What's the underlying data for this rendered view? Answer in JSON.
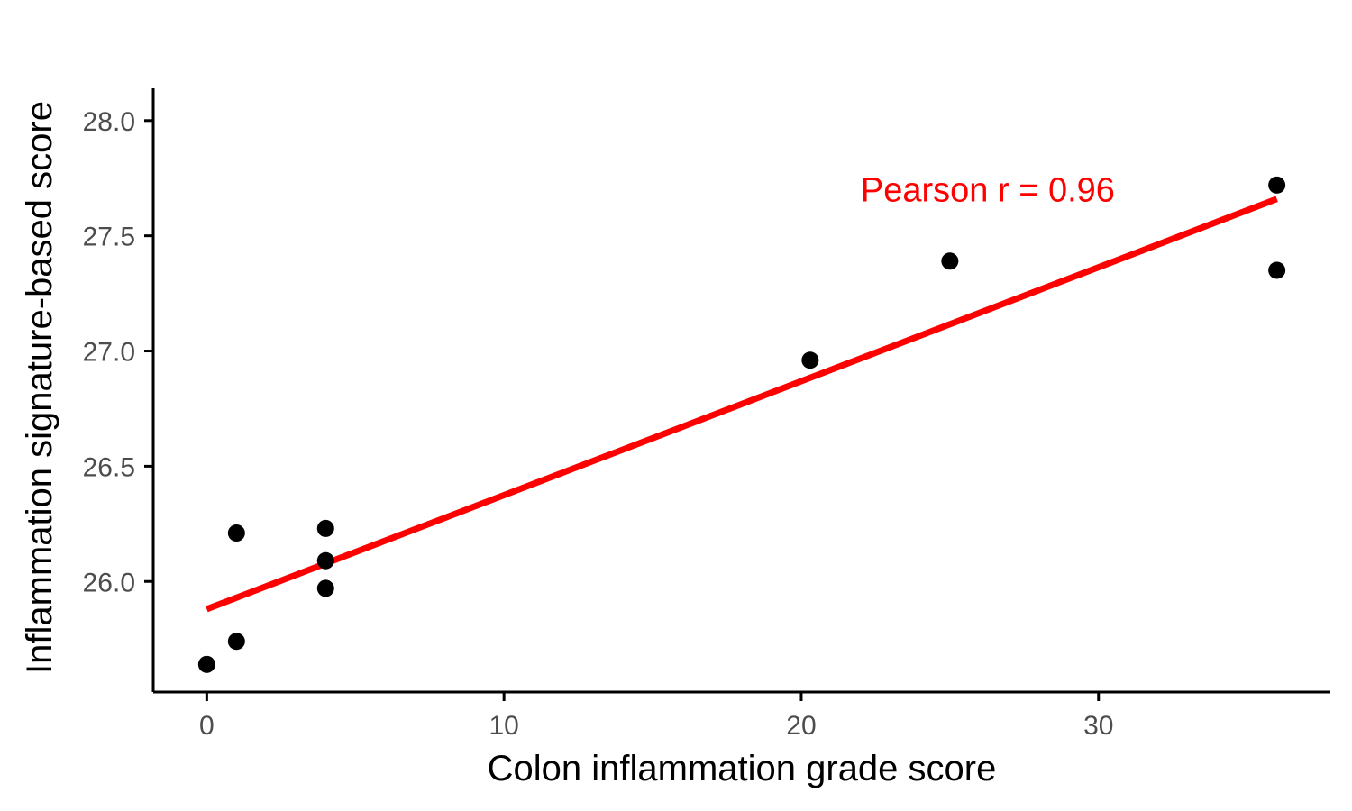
{
  "chart_data": {
    "type": "scatter",
    "xlabel": "Colon inflammation grade score",
    "ylabel": "Inflammation signature-based score",
    "xlim": [
      -1.8,
      37.8
    ],
    "ylim": [
      25.52,
      28.14
    ],
    "x_ticks": [
      0,
      10,
      20,
      30
    ],
    "y_ticks": [
      26.0,
      26.5,
      27.0,
      27.5,
      28.0
    ],
    "x_tick_labels": [
      "0",
      "10",
      "20",
      "30"
    ],
    "y_tick_labels": [
      "26.0",
      "26.5",
      "27.0",
      "27.5",
      "28.0"
    ],
    "grid": false,
    "points": [
      {
        "x": 0,
        "y": 25.64
      },
      {
        "x": 1,
        "y": 25.74
      },
      {
        "x": 1,
        "y": 26.21
      },
      {
        "x": 4,
        "y": 25.97
      },
      {
        "x": 4,
        "y": 26.09
      },
      {
        "x": 4,
        "y": 26.23
      },
      {
        "x": 20.3,
        "y": 26.96
      },
      {
        "x": 25,
        "y": 27.39
      },
      {
        "x": 36,
        "y": 27.35
      },
      {
        "x": 36,
        "y": 27.72
      }
    ],
    "fit_line": {
      "x": [
        0,
        36
      ],
      "y": [
        25.88,
        27.66
      ]
    },
    "annotation": {
      "text": "Pearson r = 0.96",
      "x": 22,
      "y": 27.7
    },
    "colors": {
      "points": "#000000",
      "fit_line": "#ff0000",
      "annotation": "#ff0000",
      "axis": "#000000"
    }
  }
}
